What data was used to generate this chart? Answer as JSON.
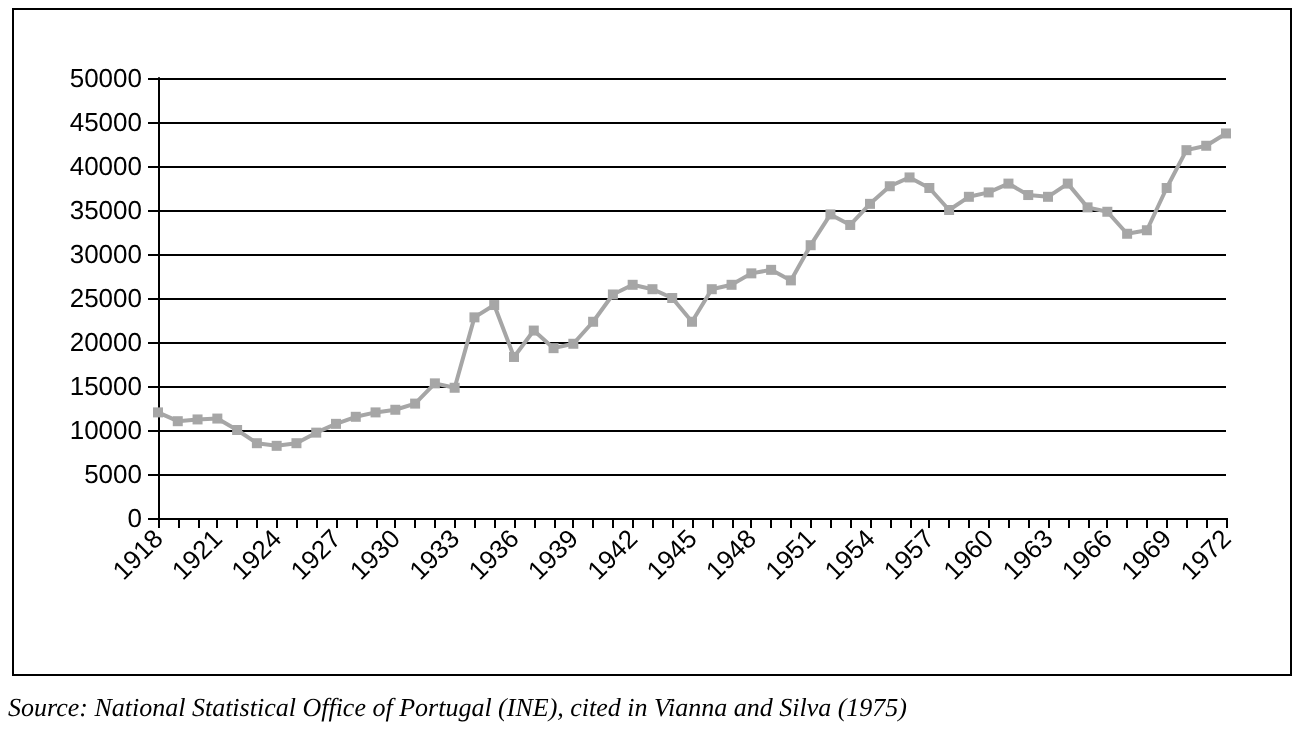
{
  "chart_data": {
    "type": "line",
    "categories": [
      "1918",
      null,
      null,
      "1921",
      null,
      null,
      "1924",
      null,
      null,
      "1927",
      null,
      null,
      "1930",
      null,
      null,
      "1933",
      null,
      null,
      "1936",
      null,
      null,
      "1939",
      null,
      null,
      "1942",
      null,
      null,
      "1945",
      null,
      null,
      "1948",
      null,
      null,
      "1951",
      null,
      null,
      "1954",
      null,
      null,
      "1957",
      null,
      null,
      "1960",
      null,
      null,
      "1963",
      null,
      null,
      "1966",
      null,
      null,
      "1969",
      null,
      null,
      "1972"
    ],
    "series": [
      {
        "color": "#a6a6a6",
        "values": [
          12000,
          11000,
          11200,
          11300,
          10000,
          8500,
          8200,
          8500,
          9700,
          10700,
          11500,
          12000,
          12300,
          13000,
          15300,
          14800,
          22800,
          24200,
          18300,
          21300,
          19300,
          19800,
          22300,
          25400,
          26500,
          26000,
          25000,
          22300,
          26000,
          26500,
          27800,
          28200,
          27000,
          31000,
          34500,
          33300,
          35700,
          37700,
          38700,
          37500,
          35000,
          36500,
          37000,
          38000,
          36700,
          36500,
          38000,
          35300,
          34800,
          32300,
          32700,
          37500,
          41800,
          42300,
          43700
        ]
      }
    ],
    "ylim": [
      0,
      50000
    ],
    "yticks": [
      0,
      5000,
      10000,
      15000,
      20000,
      25000,
      30000,
      35000,
      40000,
      45000,
      50000
    ],
    "grid": "y",
    "marker": "square",
    "line_style": "solid",
    "annotations": [
      "Source: National Statistical Office of Portugal (INE), cited in Vianna and Silva (1975)"
    ]
  }
}
